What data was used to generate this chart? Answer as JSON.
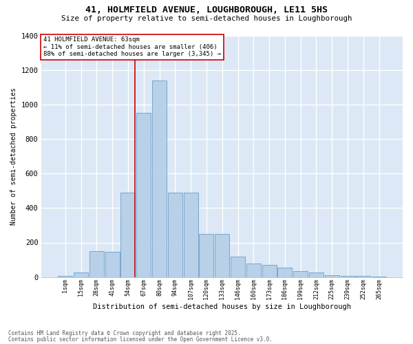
{
  "title": "41, HOLMFIELD AVENUE, LOUGHBOROUGH, LE11 5HS",
  "subtitle": "Size of property relative to semi-detached houses in Loughborough",
  "xlabel": "Distribution of semi-detached houses by size in Loughborough",
  "ylabel": "Number of semi-detached properties",
  "categories": [
    "1sqm",
    "15sqm",
    "28sqm",
    "41sqm",
    "54sqm",
    "67sqm",
    "80sqm",
    "94sqm",
    "107sqm",
    "120sqm",
    "133sqm",
    "146sqm",
    "160sqm",
    "173sqm",
    "186sqm",
    "199sqm",
    "212sqm",
    "225sqm",
    "239sqm",
    "252sqm",
    "265sqm"
  ],
  "values": [
    5,
    25,
    150,
    145,
    490,
    950,
    1140,
    490,
    490,
    250,
    250,
    120,
    80,
    70,
    55,
    35,
    25,
    12,
    8,
    5,
    4
  ],
  "bar_color": "#b8d0e8",
  "bar_edge_color": "#6a9fc8",
  "marker_bar_idx": 4,
  "marker_label": "41 HOLMFIELD AVENUE: 63sqm",
  "smaller_pct": "11% of semi-detached houses are smaller (406)",
  "larger_pct": "88% of semi-detached houses are larger (3,345)",
  "ylim": [
    0,
    1400
  ],
  "yticks": [
    0,
    200,
    400,
    600,
    800,
    1000,
    1200,
    1400
  ],
  "bg_color": "#dce8f5",
  "footer1": "Contains HM Land Registry data © Crown copyright and database right 2025.",
  "footer2": "Contains public sector information licensed under the Open Government Licence v3.0."
}
